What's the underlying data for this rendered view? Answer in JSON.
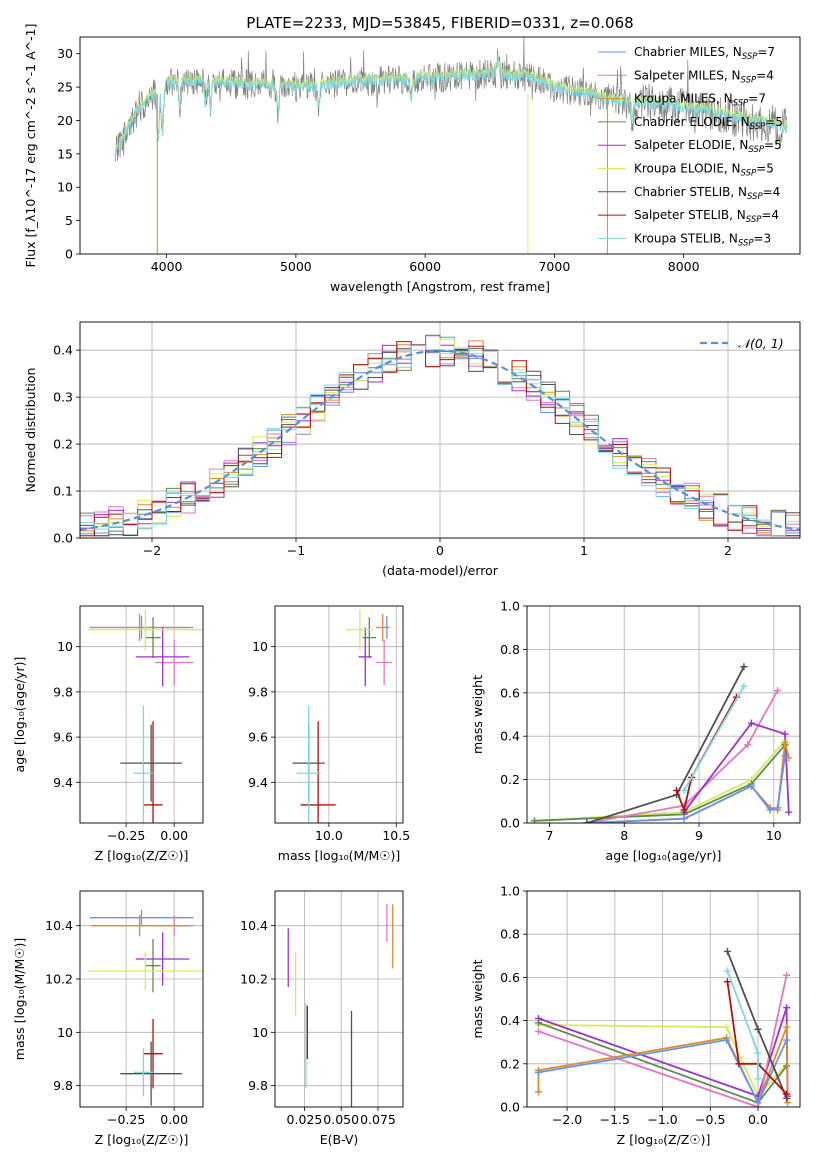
{
  "title": "PLATE=2233, MJD=53845, FIBERID=0331, z=0.068",
  "colors": {
    "Chabrier MILES": "#6495ed",
    "Salpeter MILES": "#e377c2",
    "Kroupa MILES": "#e08a2e",
    "Chabrier ELODIE": "#5f8a4f",
    "Salpeter ELODIE": "#9a32cd",
    "Kroupa ELODIE": "#d4ec5a",
    "Chabrier STELIB": "#505050",
    "Salpeter STELIB": "#b21010",
    "Kroupa STELIB": "#7fd7e0",
    "data": "#808080",
    "normal": "#5b8fd8"
  },
  "chart_data": [
    {
      "id": "spectrum",
      "type": "line",
      "xlabel": "wavelength [Angstrom, rest frame]",
      "ylabel": "Flux [f_λ10^-17 erg cm^-2 s^-1 A^-1]",
      "xlim": [
        3330,
        8900
      ],
      "ylim": [
        0,
        32.5
      ],
      "xticks": [
        4000,
        5000,
        6000,
        7000,
        8000
      ],
      "yticks": [
        0,
        5,
        10,
        15,
        20,
        25,
        30
      ],
      "legend": [
        {
          "name": "Chabrier MILES",
          "nssp": "7"
        },
        {
          "name": "Salpeter MILES",
          "nssp": "4"
        },
        {
          "name": "Kroupa MILES",
          "nssp": "7"
        },
        {
          "name": "Chabrier ELODIE",
          "nssp": "5"
        },
        {
          "name": "Salpeter ELODIE",
          "nssp": "5"
        },
        {
          "name": "Kroupa ELODIE",
          "nssp": "5"
        },
        {
          "name": "Chabrier STELIB",
          "nssp": "4"
        },
        {
          "name": "Salpeter STELIB",
          "nssp": "4"
        },
        {
          "name": "Kroupa STELIB",
          "nssp": "3"
        }
      ],
      "data_range": [
        3600,
        8800
      ],
      "continuum": [
        [
          3600,
          15
        ],
        [
          3700,
          19
        ],
        [
          3800,
          22
        ],
        [
          3950,
          25
        ],
        [
          4100,
          26
        ],
        [
          4500,
          25.5
        ],
        [
          5000,
          25
        ],
        [
          5500,
          25.8
        ],
        [
          6000,
          26.2
        ],
        [
          6500,
          27
        ],
        [
          6800,
          26.5
        ],
        [
          7000,
          25
        ],
        [
          7500,
          23
        ],
        [
          8000,
          22
        ],
        [
          8500,
          20
        ],
        [
          8800,
          19
        ]
      ]
    },
    {
      "id": "residuals",
      "type": "histogram",
      "xlabel": "(data-model)/error",
      "ylabel": "Normed distribution",
      "xlim": [
        -2.5,
        2.5
      ],
      "ylim": [
        0,
        0.46
      ],
      "xticks": [
        -2,
        -1,
        0,
        1,
        2
      ],
      "xticklabels": [
        "−2",
        "−1",
        "0",
        "1",
        "2"
      ],
      "yticks": [
        0,
        0.1,
        0.2,
        0.3,
        0.4
      ],
      "yticklabels": [
        "0.0",
        "0.1",
        "0.2",
        "0.3",
        "0.4"
      ],
      "legend": "𝒩(0, 1)",
      "bin_width": 0.1
    },
    {
      "id": "age_Z",
      "type": "errorbar",
      "xlabel": "Z [log₁₀(Z/Z☉)]",
      "ylabel": "age  [log₁₀(age/yr)]",
      "xlim": [
        -0.49,
        0.15
      ],
      "ylim": [
        9.22,
        10.18
      ],
      "xticks": [
        -0.25,
        0.0
      ],
      "xticklabels": [
        "−0.25",
        "0.00"
      ],
      "yticks": [
        9.4,
        9.6,
        9.8,
        10.0
      ],
      "points": [
        {
          "m": "Chabrier MILES",
          "x": -0.17,
          "xerr": 0.27,
          "y": 10.085,
          "yerr": 0.05
        },
        {
          "m": "Salpeter MILES",
          "x": 0.0,
          "xerr": 0.1,
          "y": 9.93,
          "yerr": 0.1
        },
        {
          "m": "Kroupa MILES",
          "x": -0.18,
          "xerr": 0.25,
          "y": 10.085,
          "yerr": 0.06
        },
        {
          "m": "Chabrier ELODIE",
          "x": -0.11,
          "xerr": 0.04,
          "y": 10.04,
          "yerr": 0.09
        },
        {
          "m": "Salpeter ELODIE",
          "x": -0.06,
          "xerr": 0.14,
          "y": 9.955,
          "yerr": 0.13
        },
        {
          "m": "Kroupa ELODIE",
          "x": -0.15,
          "xerr": 0.3,
          "y": 10.075,
          "yerr": 0.09
        },
        {
          "m": "Chabrier STELIB",
          "x": -0.12,
          "xerr": 0.16,
          "y": 9.485,
          "yerr": 0.17
        },
        {
          "m": "Salpeter STELIB",
          "x": -0.11,
          "xerr": 0.05,
          "y": 9.3,
          "yerr": 0.37
        },
        {
          "m": "Kroupa STELIB",
          "x": -0.16,
          "xerr": 0.05,
          "y": 9.44,
          "yerr": 0.3
        }
      ]
    },
    {
      "id": "age_mass",
      "type": "errorbar",
      "xlabel": "mass [log₁₀(M/M☉)]",
      "ylabel": "",
      "xlim": [
        9.6,
        10.55
      ],
      "ylim": [
        9.22,
        10.18
      ],
      "xticks": [
        10.0,
        10.5
      ],
      "xticklabels": [
        "10.0",
        "10.5"
      ],
      "yticks": [
        9.4,
        9.6,
        9.8,
        10.0
      ],
      "points": [
        {
          "m": "Chabrier MILES",
          "x": 10.43,
          "xerr": 0.02,
          "y": 10.085,
          "yerr": 0.05
        },
        {
          "m": "Salpeter MILES",
          "x": 10.41,
          "xerr": 0.06,
          "y": 9.93,
          "yerr": 0.1
        },
        {
          "m": "Kroupa MILES",
          "x": 10.4,
          "xerr": 0.05,
          "y": 10.085,
          "yerr": 0.06
        },
        {
          "m": "Chabrier ELODIE",
          "x": 10.3,
          "xerr": 0.05,
          "y": 10.04,
          "yerr": 0.09
        },
        {
          "m": "Salpeter ELODIE",
          "x": 10.27,
          "xerr": 0.05,
          "y": 9.955,
          "yerr": 0.13
        },
        {
          "m": "Kroupa ELODIE",
          "x": 10.23,
          "xerr": 0.1,
          "y": 10.075,
          "yerr": 0.09
        },
        {
          "m": "Chabrier STELIB",
          "x": 9.85,
          "xerr": 0.12,
          "y": 9.485,
          "yerr": 0.17
        },
        {
          "m": "Salpeter STELIB",
          "x": 9.92,
          "xerr": 0.13,
          "y": 9.3,
          "yerr": 0.37
        },
        {
          "m": "Kroupa STELIB",
          "x": 9.85,
          "xerr": 0.09,
          "y": 9.44,
          "yerr": 0.3
        }
      ]
    },
    {
      "id": "weight_age",
      "type": "line",
      "xlabel": "age  [log₁₀(age/yr)]",
      "ylabel": "mass weight",
      "xlim": [
        6.7,
        10.35
      ],
      "ylim": [
        0,
        1.0
      ],
      "xticks": [
        7,
        8,
        9,
        10
      ],
      "yticks": [
        0,
        0.2,
        0.4,
        0.6,
        0.8,
        1.0
      ],
      "yticklabels": [
        "0.0",
        "0.2",
        "0.4",
        "0.6",
        "0.8",
        "1.0"
      ],
      "series": [
        {
          "m": "Kroupa ELODIE",
          "x": [
            6.8,
            8.8,
            9.7,
            10.15
          ],
          "y": [
            0.01,
            0.05,
            0.2,
            0.38
          ]
        },
        {
          "m": "Chabrier ELODIE",
          "x": [
            6.8,
            8.8,
            9.7,
            10.15
          ],
          "y": [
            0.01,
            0.04,
            0.18,
            0.36
          ]
        },
        {
          "m": "Salpeter MILES",
          "x": [
            7.5,
            8.8,
            9.65,
            10.05
          ],
          "y": [
            0.0,
            0.08,
            0.36,
            0.61
          ]
        },
        {
          "m": "Salpeter ELODIE",
          "x": [
            8.8,
            9.7,
            10.15,
            10.2
          ],
          "y": [
            0.05,
            0.46,
            0.41,
            0.05
          ]
        },
        {
          "m": "Kroupa MILES",
          "x": [
            7.5,
            8.8,
            9.7,
            9.95,
            10.05,
            10.15,
            10.2
          ],
          "y": [
            0.0,
            0.02,
            0.17,
            0.07,
            0.06,
            0.37,
            0.3
          ]
        },
        {
          "m": "Chabrier MILES",
          "x": [
            7.5,
            8.8,
            9.7,
            9.95,
            10.05,
            10.15
          ],
          "y": [
            0.0,
            0.02,
            0.17,
            0.06,
            0.07,
            0.31
          ]
        },
        {
          "m": "Chabrier STELIB",
          "x": [
            7.5,
            8.7,
            9.6
          ],
          "y": [
            0.0,
            0.13,
            0.72
          ]
        },
        {
          "m": "Salpeter STELIB",
          "x": [
            8.7,
            8.8,
            8.9,
            9.5
          ],
          "y": [
            0.15,
            0.06,
            0.21,
            0.58
          ]
        },
        {
          "m": "Kroupa STELIB",
          "x": [
            8.8,
            9.6
          ],
          "y": [
            0.15,
            0.63
          ]
        }
      ]
    },
    {
      "id": "mass_Z",
      "type": "errorbar",
      "xlabel": "Z [log₁₀(Z/Z☉)]",
      "ylabel": "mass [log₁₀(M/M☉)]",
      "xlim": [
        -0.49,
        0.15
      ],
      "ylim": [
        9.72,
        10.53
      ],
      "xticks": [
        -0.25,
        0.0
      ],
      "xticklabels": [
        "−0.25",
        "0.00"
      ],
      "yticks": [
        9.8,
        10.0,
        10.2,
        10.4
      ],
      "points": [
        {
          "m": "Chabrier MILES",
          "x": -0.17,
          "xerr": 0.27,
          "y": 10.43,
          "yerr": 0.03
        },
        {
          "m": "Salpeter MILES",
          "x": 0.0,
          "xerr": 0.1,
          "y": 10.4,
          "yerr": 0.04
        },
        {
          "m": "Kroupa MILES",
          "x": -0.18,
          "xerr": 0.25,
          "y": 10.4,
          "yerr": 0.04
        },
        {
          "m": "Chabrier ELODIE",
          "x": -0.11,
          "xerr": 0.04,
          "y": 10.25,
          "yerr": 0.1
        },
        {
          "m": "Salpeter ELODIE",
          "x": -0.06,
          "xerr": 0.14,
          "y": 10.275,
          "yerr": 0.1
        },
        {
          "m": "Kroupa ELODIE",
          "x": -0.15,
          "xerr": 0.3,
          "y": 10.23,
          "yerr": 0.07
        },
        {
          "m": "Chabrier STELIB",
          "x": -0.12,
          "xerr": 0.16,
          "y": 9.845,
          "yerr": 0.12
        },
        {
          "m": "Salpeter STELIB",
          "x": -0.11,
          "xerr": 0.05,
          "y": 9.92,
          "yerr": 0.13
        },
        {
          "m": "Kroupa STELIB",
          "x": -0.16,
          "xerr": 0.05,
          "y": 9.85,
          "yerr": 0.09
        }
      ]
    },
    {
      "id": "mass_ebv",
      "type": "errorbar",
      "xlabel": "E(B-V)",
      "ylabel": "",
      "xlim": [
        0.005,
        0.092
      ],
      "ylim": [
        9.72,
        10.53
      ],
      "xticks": [
        0.025,
        0.05,
        0.075
      ],
      "xticklabels": [
        "0.025",
        "0.050",
        "0.075"
      ],
      "yticks": [
        9.8,
        10.0,
        10.2,
        10.4
      ],
      "points": [
        {
          "m": "Salpeter MILES",
          "x": 0.081,
          "xerr": 0,
          "y": 10.41,
          "yerr": 0.07
        },
        {
          "m": "Kroupa MILES",
          "x": 0.085,
          "xerr": 0,
          "y": 10.36,
          "yerr": 0.12
        },
        {
          "m": "Salpeter ELODIE",
          "x": 0.014,
          "xerr": 0,
          "y": 10.28,
          "yerr": 0.11
        },
        {
          "m": "Kroupa ELODIE",
          "x": 0.019,
          "xerr": 0,
          "y": 10.18,
          "yerr": 0.12
        },
        {
          "m": "Salpeter STELIB",
          "x": 0.027,
          "xerr": 0,
          "y": 10.0,
          "yerr": 0.1
        },
        {
          "m": "Kroupa STELIB",
          "x": 0.026,
          "xerr": 0,
          "y": 9.95,
          "yerr": 0.16
        },
        {
          "m": "Chabrier STELIB",
          "x": 0.057,
          "xerr": 0,
          "y": 9.84,
          "yerr": 0.24
        }
      ]
    },
    {
      "id": "weight_Z",
      "type": "line",
      "xlabel": "Z [log₁₀(Z/Z☉)]",
      "ylabel": "mass weight",
      "xlim": [
        -2.42,
        0.44
      ],
      "ylim": [
        0,
        1.0
      ],
      "xticks": [
        -2.0,
        -1.5,
        -1.0,
        -0.5,
        0.0
      ],
      "xticklabels": [
        "−2.0",
        "−1.5",
        "−1.0",
        "−0.5",
        "0.0"
      ],
      "yticks": [
        0,
        0.2,
        0.4,
        0.6,
        0.8,
        1.0
      ],
      "yticklabels": [
        "0.0",
        "0.2",
        "0.4",
        "0.6",
        "0.8",
        "1.0"
      ],
      "series": [
        {
          "m": "Kroupa ELODIE",
          "x": [
            -2.3,
            -0.33,
            0.0,
            0.3
          ],
          "y": [
            0.38,
            0.37,
            0.05,
            0.2
          ]
        },
        {
          "m": "Chabrier ELODIE",
          "x": [
            -2.3,
            0.0,
            0.3
          ],
          "y": [
            0.39,
            0.02,
            0.19
          ]
        },
        {
          "m": "Salpeter ELODIE",
          "x": [
            -2.3,
            0.0,
            0.3,
            0.31
          ],
          "y": [
            0.41,
            0.05,
            0.46,
            0.05
          ]
        },
        {
          "m": "Salpeter MILES",
          "x": [
            -2.3,
            0.0,
            0.3
          ],
          "y": [
            0.35,
            0.0,
            0.61
          ]
        },
        {
          "m": "Kroupa MILES",
          "x": [
            -2.3,
            -2.3,
            -0.33,
            0.0,
            0.3,
            0.31
          ],
          "y": [
            0.07,
            0.17,
            0.32,
            0.02,
            0.37,
            0.02
          ]
        },
        {
          "m": "Chabrier MILES",
          "x": [
            -2.3,
            -0.33,
            0.0,
            0.3
          ],
          "y": [
            0.16,
            0.31,
            0.02,
            0.31
          ]
        },
        {
          "m": "Chabrier STELIB",
          "x": [
            -0.32,
            0.0,
            0.3
          ],
          "y": [
            0.72,
            0.36,
            0.04
          ]
        },
        {
          "m": "Salpeter STELIB",
          "x": [
            -0.32,
            -0.2,
            0.0,
            0.3
          ],
          "y": [
            0.58,
            0.2,
            0.2,
            0.06
          ]
        },
        {
          "m": "Kroupa STELIB",
          "x": [
            -0.32,
            0.0,
            0.0
          ],
          "y": [
            0.63,
            0.25,
            0.13
          ]
        }
      ]
    }
  ]
}
